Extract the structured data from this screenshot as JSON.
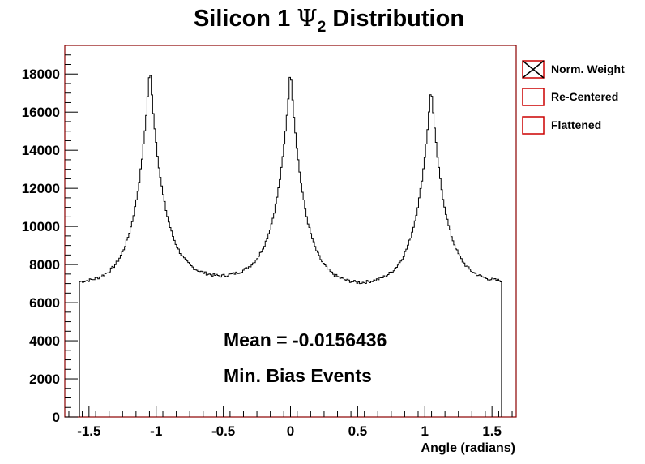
{
  "chart_data": {
    "type": "histogram",
    "title": {
      "prefix": "Silicon 1 ",
      "symbol": "Ψ",
      "subscript": "2",
      "suffix": " Distribution"
    },
    "xlabel": "Angle (radians)",
    "ylabel": "",
    "xlim": [
      -1.68,
      1.68
    ],
    "ylim": [
      0,
      19500
    ],
    "x_ticks": [
      {
        "value": -1.5,
        "label": "-1.5"
      },
      {
        "value": -1,
        "label": "-1"
      },
      {
        "value": -0.5,
        "label": "-0.5"
      },
      {
        "value": 0,
        "label": "0"
      },
      {
        "value": 0.5,
        "label": "0.5"
      },
      {
        "value": 1,
        "label": "1"
      },
      {
        "value": 1.5,
        "label": "1.5"
      }
    ],
    "y_ticks": [
      {
        "value": 0,
        "label": "0"
      },
      {
        "value": 2000,
        "label": "2000"
      },
      {
        "value": 4000,
        "label": "4000"
      },
      {
        "value": 6000,
        "label": "6000"
      },
      {
        "value": 8000,
        "label": "8000"
      },
      {
        "value": 10000,
        "label": "10000"
      },
      {
        "value": 12000,
        "label": "12000"
      },
      {
        "value": 14000,
        "label": "14000"
      },
      {
        "value": 16000,
        "label": "16000"
      },
      {
        "value": 18000,
        "label": "18000"
      }
    ],
    "histogram_range": [
      -1.5708,
      1.5708
    ],
    "peaks": [
      {
        "x": -1.047,
        "y": 18400
      },
      {
        "x": 0.0,
        "y": 18300
      },
      {
        "x": 1.047,
        "y": 17400
      }
    ],
    "valleys": [
      {
        "x": -1.5708,
        "y": 7100
      },
      {
        "x": -0.52,
        "y": 7400
      },
      {
        "x": 0.52,
        "y": 7050
      },
      {
        "x": 1.5708,
        "y": 7150
      }
    ],
    "series": [
      {
        "name": "Norm. Weight",
        "color": "#000000",
        "marker": "crossed-box"
      },
      {
        "name": "Re-Centered",
        "color": "#cc0000",
        "marker": "box"
      },
      {
        "name": "Flattened",
        "color": "#cc0000",
        "marker": "box"
      }
    ],
    "annotations": [
      "Mean = -0.0156436",
      "Min. Bias Events"
    ],
    "frame_color": "#8b0000",
    "legend_position": "right"
  }
}
